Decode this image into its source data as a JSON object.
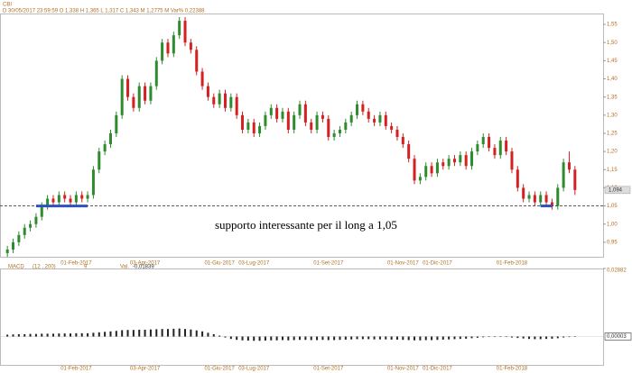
{
  "chart_data": {
    "type": "candlestick",
    "symbol": "CBI",
    "info": "D 30/05/2017   23:59:59   O 1,338   H 1,365   L 1,317   C 1,343   M 1,2775 M   Var% 0,22388",
    "annotation": "supporto interessante per il long a 1,05",
    "support_line": 1.05,
    "last_price": 1.094,
    "last_price_label": "1,094",
    "up_color": "#2e8b2e",
    "down_color": "#d42020",
    "support_color": "#3050c0",
    "categories": [
      null,
      null,
      null,
      null,
      null,
      null,
      null,
      null,
      null,
      null,
      null,
      null,
      "01-Feb-2017",
      null,
      null,
      null,
      null,
      null,
      null,
      null,
      null,
      null,
      null,
      null,
      "03-Apr-2017",
      null,
      null,
      null,
      null,
      null,
      null,
      null,
      null,
      null,
      null,
      null,
      null,
      "01-Giu-2017",
      null,
      null,
      null,
      null,
      null,
      "03-Lug-2017",
      null,
      null,
      null,
      null,
      null,
      null,
      null,
      null,
      null,
      null,
      null,
      null,
      "01-Set-2017",
      null,
      null,
      null,
      null,
      null,
      null,
      null,
      null,
      null,
      null,
      null,
      null,
      "01-Nov-2017",
      null,
      null,
      null,
      null,
      null,
      "01-Dic-2017",
      null,
      null,
      null,
      null,
      null,
      null,
      null,
      null,
      null,
      null,
      null,
      null,
      "01-Feb-2018",
      null,
      null,
      null,
      null,
      null,
      null,
      null,
      null,
      null,
      null,
      null
    ],
    "open": [
      0.92,
      0.93,
      0.95,
      0.97,
      0.99,
      1.0,
      1.02,
      1.05,
      1.07,
      1.06,
      1.08,
      1.07,
      1.06,
      1.08,
      1.07,
      1.08,
      1.15,
      1.2,
      1.22,
      1.25,
      1.3,
      1.4,
      1.35,
      1.32,
      1.38,
      1.34,
      1.38,
      1.45,
      1.5,
      1.47,
      1.52,
      1.56,
      1.5,
      1.48,
      1.42,
      1.38,
      1.35,
      1.33,
      1.36,
      1.32,
      1.35,
      1.3,
      1.26,
      1.28,
      1.25,
      1.27,
      1.3,
      1.32,
      1.29,
      1.31,
      1.26,
      1.3,
      1.33,
      1.28,
      1.26,
      1.3,
      1.29,
      1.24,
      1.25,
      1.26,
      1.28,
      1.3,
      1.33,
      1.31,
      1.29,
      1.28,
      1.3,
      1.27,
      1.26,
      1.24,
      1.22,
      1.18,
      1.12,
      1.13,
      1.16,
      1.14,
      1.17,
      1.16,
      1.18,
      1.17,
      1.19,
      1.16,
      1.2,
      1.22,
      1.24,
      1.21,
      1.19,
      1.23,
      1.2,
      1.15,
      1.1,
      1.07,
      1.08,
      1.06,
      1.08,
      1.06,
      1.05,
      1.1,
      1.17,
      1.15
    ],
    "high": [
      0.94,
      0.96,
      0.98,
      1.0,
      1.01,
      1.03,
      1.06,
      1.08,
      1.08,
      1.09,
      1.09,
      1.08,
      1.09,
      1.09,
      1.09,
      1.16,
      1.21,
      1.23,
      1.26,
      1.31,
      1.41,
      1.41,
      1.36,
      1.39,
      1.39,
      1.39,
      1.46,
      1.51,
      1.51,
      1.53,
      1.57,
      1.57,
      1.51,
      1.49,
      1.43,
      1.39,
      1.36,
      1.37,
      1.37,
      1.36,
      1.36,
      1.31,
      1.29,
      1.29,
      1.28,
      1.31,
      1.33,
      1.33,
      1.32,
      1.32,
      1.31,
      1.34,
      1.34,
      1.29,
      1.31,
      1.31,
      1.3,
      1.26,
      1.27,
      1.29,
      1.31,
      1.34,
      1.34,
      1.32,
      1.3,
      1.31,
      1.31,
      1.28,
      1.27,
      1.25,
      1.23,
      1.19,
      1.14,
      1.17,
      1.17,
      1.18,
      1.18,
      1.19,
      1.19,
      1.2,
      1.2,
      1.21,
      1.23,
      1.25,
      1.25,
      1.22,
      1.24,
      1.24,
      1.21,
      1.16,
      1.11,
      1.09,
      1.09,
      1.09,
      1.09,
      1.07,
      1.11,
      1.18,
      1.2,
      1.16
    ],
    "low": [
      0.91,
      0.92,
      0.94,
      0.96,
      0.98,
      0.99,
      1.01,
      1.04,
      1.05,
      1.05,
      1.06,
      1.05,
      1.05,
      1.06,
      1.06,
      1.07,
      1.14,
      1.19,
      1.21,
      1.24,
      1.29,
      1.34,
      1.31,
      1.31,
      1.33,
      1.33,
      1.37,
      1.44,
      1.46,
      1.46,
      1.51,
      1.49,
      1.47,
      1.41,
      1.37,
      1.34,
      1.32,
      1.32,
      1.31,
      1.31,
      1.29,
      1.25,
      1.25,
      1.24,
      1.24,
      1.26,
      1.29,
      1.28,
      1.28,
      1.25,
      1.25,
      1.29,
      1.27,
      1.25,
      1.25,
      1.28,
      1.23,
      1.23,
      1.24,
      1.25,
      1.27,
      1.29,
      1.3,
      1.28,
      1.27,
      1.27,
      1.26,
      1.25,
      1.23,
      1.21,
      1.17,
      1.11,
      1.11,
      1.12,
      1.13,
      1.13,
      1.15,
      1.15,
      1.16,
      1.16,
      1.15,
      1.15,
      1.19,
      1.21,
      1.2,
      1.18,
      1.18,
      1.19,
      1.14,
      1.09,
      1.06,
      1.06,
      1.05,
      1.05,
      1.05,
      1.04,
      1.04,
      1.09,
      1.14,
      1.08
    ],
    "close": [
      0.93,
      0.95,
      0.97,
      0.99,
      1.0,
      1.02,
      1.05,
      1.07,
      1.06,
      1.08,
      1.07,
      1.06,
      1.08,
      1.07,
      1.08,
      1.15,
      1.2,
      1.22,
      1.25,
      1.3,
      1.4,
      1.35,
      1.32,
      1.38,
      1.34,
      1.38,
      1.45,
      1.5,
      1.47,
      1.52,
      1.56,
      1.5,
      1.48,
      1.42,
      1.38,
      1.35,
      1.33,
      1.36,
      1.32,
      1.35,
      1.3,
      1.26,
      1.28,
      1.25,
      1.27,
      1.3,
      1.32,
      1.29,
      1.31,
      1.26,
      1.3,
      1.33,
      1.28,
      1.26,
      1.3,
      1.29,
      1.24,
      1.25,
      1.26,
      1.28,
      1.3,
      1.33,
      1.31,
      1.29,
      1.28,
      1.3,
      1.27,
      1.26,
      1.24,
      1.22,
      1.18,
      1.12,
      1.13,
      1.16,
      1.14,
      1.17,
      1.16,
      1.18,
      1.17,
      1.19,
      1.16,
      1.2,
      1.22,
      1.24,
      1.21,
      1.19,
      1.23,
      1.2,
      1.15,
      1.1,
      1.07,
      1.08,
      1.06,
      1.08,
      1.06,
      1.05,
      1.1,
      1.17,
      1.15,
      1.094
    ],
    "ylim": [
      0.91,
      1.58
    ],
    "yticks": [
      {
        "value": 0.95,
        "label": "0,95"
      },
      {
        "value": 1.0,
        "label": "1,00"
      },
      {
        "value": 1.05,
        "label": "1,05"
      },
      {
        "value": 1.1,
        "label": "1,10"
      },
      {
        "value": 1.15,
        "label": "1,15"
      },
      {
        "value": 1.2,
        "label": "1,20"
      },
      {
        "value": 1.25,
        "label": "1,25"
      },
      {
        "value": 1.3,
        "label": "1,30"
      },
      {
        "value": 1.35,
        "label": "1,35"
      },
      {
        "value": 1.4,
        "label": "1,40"
      },
      {
        "value": 1.45,
        "label": "1,45"
      },
      {
        "value": 1.5,
        "label": "1,50"
      },
      {
        "value": 1.55,
        "label": "1,55"
      }
    ],
    "macd_title": "MACD",
    "macd_params": "(12 , 200)",
    "macd_signal": "9",
    "macd_val_label": "Val.",
    "macd_val": "-0,01839",
    "macd": [
      0.0008,
      0.0009,
      0.001,
      0.001,
      0.0011,
      0.0011,
      0.0012,
      0.0012,
      0.0012,
      0.0013,
      0.0013,
      0.0013,
      0.0014,
      0.0014,
      0.0014,
      0.0016,
      0.0018,
      0.002,
      0.0022,
      0.0024,
      0.0027,
      0.0028,
      0.0028,
      0.0029,
      0.0029,
      0.003,
      0.0031,
      0.0032,
      0.0032,
      0.0033,
      0.0034,
      0.0032,
      0.003,
      0.0026,
      0.0022,
      0.0016,
      0.001,
      0.0004,
      -0.0004,
      -0.001,
      -0.0014,
      -0.0016,
      -0.0017,
      -0.0018,
      -0.0018,
      -0.0017,
      -0.0016,
      -0.0016,
      -0.0015,
      -0.0016,
      -0.0015,
      -0.0014,
      -0.0014,
      -0.0015,
      -0.0015,
      -0.0014,
      -0.0015,
      -0.0015,
      -0.0014,
      -0.0013,
      -0.0012,
      -0.0011,
      -0.0011,
      -0.0011,
      -0.0012,
      -0.0012,
      -0.0012,
      -0.0013,
      -0.0013,
      -0.0014,
      -0.0015,
      -0.0016,
      -0.0016,
      -0.0015,
      -0.0015,
      -0.0014,
      -0.0013,
      -0.0012,
      -0.0011,
      -0.001,
      -0.0009,
      -0.0007,
      -0.0005,
      -0.0003,
      -0.0002,
      -0.0002,
      -0.0001,
      -0.0002,
      -0.0004,
      -0.0006,
      -0.0008,
      -0.001,
      -0.0011,
      -0.0011,
      -0.001,
      -0.0009,
      -0.0007,
      -0.0004,
      -0.0002,
      3e-05
    ],
    "macd_last": 3e-05,
    "macd_last_label": "0,00003",
    "macd_ylim": [
      -0.012,
      0.02882
    ],
    "macd_yticks": [
      {
        "value": 0.02882,
        "label": "0,02882"
      }
    ],
    "macd_color": "#222222"
  }
}
